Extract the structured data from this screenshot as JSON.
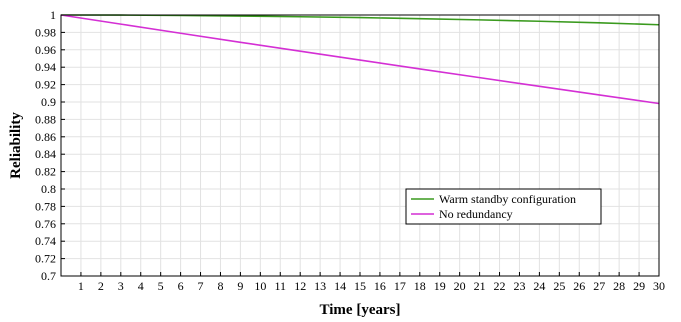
{
  "chart_data": {
    "type": "line",
    "xlabel": "Time [years]",
    "ylabel": "Reliability",
    "xlim": [
      0,
      30
    ],
    "ylim": [
      0.7,
      1.0
    ],
    "xticks": [
      1,
      2,
      3,
      4,
      5,
      6,
      7,
      8,
      9,
      10,
      11,
      12,
      13,
      14,
      15,
      16,
      17,
      18,
      19,
      20,
      21,
      22,
      23,
      24,
      25,
      26,
      27,
      28,
      29,
      30
    ],
    "yticks": [
      "0.7",
      "0.72",
      "0.74",
      "0.76",
      "0.78",
      "0.8",
      "0.82",
      "0.84",
      "0.86",
      "0.88",
      "0.9",
      "0.92",
      "0.94",
      "0.96",
      "0.98",
      "1"
    ],
    "grid": true,
    "legend_position": "lower-right",
    "series": [
      {
        "name": "Warm standby configuration",
        "color": "#3a9a1e",
        "x": [
          0,
          3,
          6,
          9,
          12,
          15,
          18,
          21,
          24,
          27,
          30
        ],
        "y": [
          1.0,
          0.9999,
          0.9995,
          0.9988,
          0.998,
          0.997,
          0.9958,
          0.9944,
          0.9928,
          0.991,
          0.9888
        ]
      },
      {
        "name": "No redundancy",
        "color": "#d42fd4",
        "x": [
          0,
          3,
          6,
          9,
          12,
          15,
          18,
          21,
          24,
          27,
          30
        ],
        "y": [
          1.0,
          0.9895,
          0.979,
          0.9686,
          0.9584,
          0.9482,
          0.938,
          0.928,
          0.918,
          0.9081,
          0.8983
        ]
      }
    ]
  }
}
